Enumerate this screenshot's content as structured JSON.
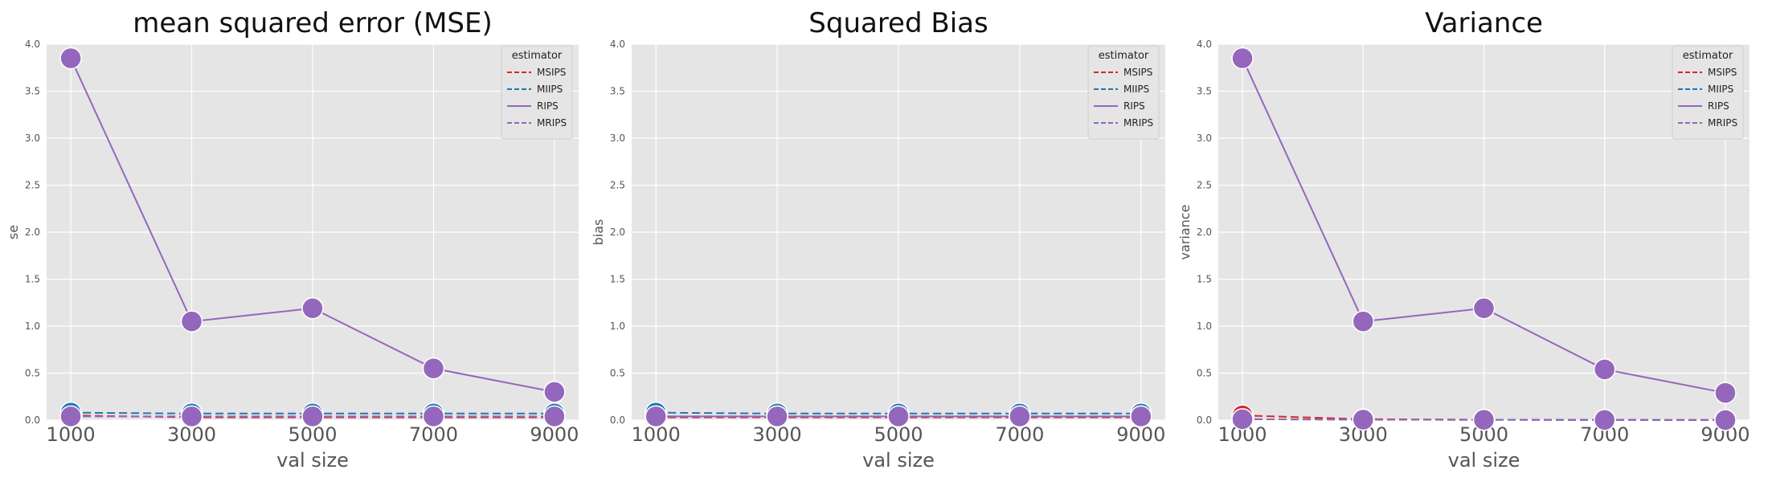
{
  "chart_data": [
    {
      "type": "line",
      "title": "mean squared error (MSE)",
      "xlabel": "val size",
      "ylabel": "se",
      "x": [
        1000,
        3000,
        5000,
        7000,
        9000
      ],
      "xticks": [
        "1000",
        "3000",
        "5000",
        "7000",
        "9000"
      ],
      "yticks": [
        "0.0",
        "0.5",
        "1.0",
        "1.5",
        "2.0",
        "2.5",
        "3.0",
        "3.5",
        "4.0"
      ],
      "ylim": [
        0,
        4.0
      ],
      "grid": true,
      "legend": {
        "title": "estimator",
        "placement": "top-right"
      },
      "series": [
        {
          "name": "MSIPS",
          "values": [
            0.05,
            0.03,
            0.03,
            0.03,
            0.03
          ]
        },
        {
          "name": "MIIPS",
          "values": [
            0.08,
            0.07,
            0.07,
            0.07,
            0.07
          ]
        },
        {
          "name": "RIPS",
          "values": [
            3.85,
            1.05,
            1.19,
            0.55,
            0.3
          ]
        },
        {
          "name": "MRIPS",
          "values": [
            0.04,
            0.04,
            0.04,
            0.04,
            0.04
          ]
        }
      ]
    },
    {
      "type": "line",
      "title": "Squared Bias",
      "xlabel": "val size",
      "ylabel": "bias",
      "x": [
        1000,
        3000,
        5000,
        7000,
        9000
      ],
      "xticks": [
        "1000",
        "3000",
        "5000",
        "7000",
        "9000"
      ],
      "yticks": [
        "0.0",
        "0.5",
        "1.0",
        "1.5",
        "2.0",
        "2.5",
        "3.0",
        "3.5",
        "4.0"
      ],
      "ylim": [
        0,
        4.0
      ],
      "grid": true,
      "legend": {
        "title": "estimator",
        "placement": "top-right"
      },
      "series": [
        {
          "name": "MSIPS",
          "values": [
            0.03,
            0.03,
            0.03,
            0.03,
            0.03
          ]
        },
        {
          "name": "MIIPS",
          "values": [
            0.08,
            0.07,
            0.07,
            0.07,
            0.07
          ]
        },
        {
          "name": "RIPS",
          "values": [
            0.04,
            0.04,
            0.04,
            0.04,
            0.04
          ]
        },
        {
          "name": "MRIPS",
          "values": [
            0.04,
            0.04,
            0.04,
            0.04,
            0.04
          ]
        }
      ]
    },
    {
      "type": "line",
      "title": "Variance",
      "xlabel": "val size",
      "ylabel": "variance",
      "x": [
        1000,
        3000,
        5000,
        7000,
        9000
      ],
      "xticks": [
        "1000",
        "3000",
        "5000",
        "7000",
        "9000"
      ],
      "yticks": [
        "0.0",
        "0.5",
        "1.0",
        "1.5",
        "2.0",
        "2.5",
        "3.0",
        "3.5",
        "4.0"
      ],
      "ylim": [
        0,
        4.0
      ],
      "grid": true,
      "legend": {
        "title": "estimator",
        "placement": "top-right"
      },
      "series": [
        {
          "name": "MSIPS",
          "values": [
            0.05,
            0.01,
            0.005,
            0.003,
            0.002
          ]
        },
        {
          "name": "MIIPS",
          "values": [
            0.01,
            0.005,
            0.003,
            0.002,
            0.001
          ]
        },
        {
          "name": "RIPS",
          "values": [
            3.85,
            1.05,
            1.19,
            0.54,
            0.29
          ]
        },
        {
          "name": "MRIPS",
          "values": [
            0.01,
            0.005,
            0.003,
            0.002,
            0.001
          ]
        }
      ]
    }
  ],
  "style": {
    "panel_bg": "#e5e5e5",
    "grid_color": "#ffffff",
    "series_colors": {
      "MSIPS": "#d62728",
      "MIIPS": "#1f77b4",
      "RIPS": "#9467bd",
      "MRIPS": "#9467bd"
    },
    "series_dash": {
      "MSIPS": "dashed",
      "MIIPS": "dashed",
      "RIPS": "solid",
      "MRIPS": "dashed"
    }
  }
}
